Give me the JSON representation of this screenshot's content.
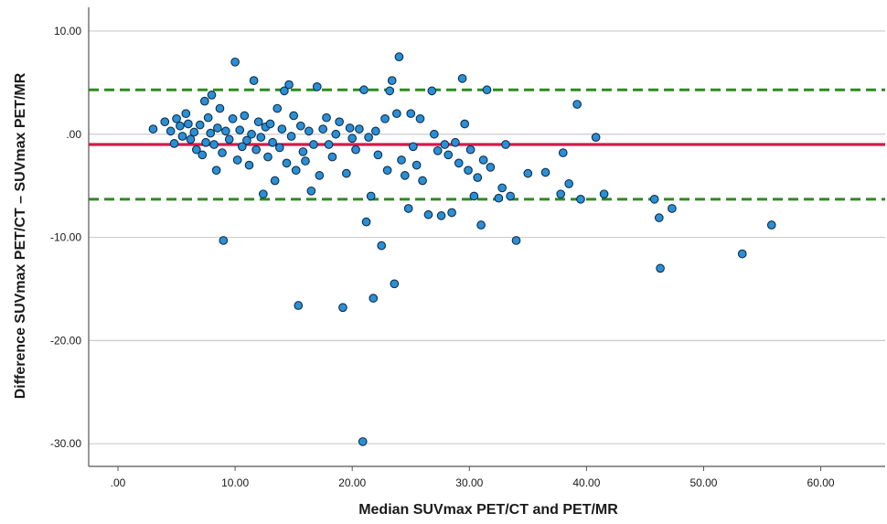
{
  "chart_data": {
    "type": "scatter",
    "title": "",
    "xlabel": "Median SUVmax PET/CT and PET/MR",
    "ylabel": "Difference SUVmax PET/CT – SUVmax PET/MR",
    "xlim": [
      -2.5,
      65.5
    ],
    "ylim": [
      -32.2,
      12.3
    ],
    "x_ticks": [
      0,
      10,
      20,
      30,
      40,
      50,
      60
    ],
    "x_tick_labels": [
      ".00",
      "10.00",
      "20.00",
      "30.00",
      "40.00",
      "50.00",
      "60.00"
    ],
    "y_ticks": [
      10,
      0,
      -10,
      -20,
      -30
    ],
    "y_tick_labels": [
      "10.00",
      ".00",
      "-10.00",
      "-20.00",
      "-30.00"
    ],
    "grid": "horizontal",
    "reference_lines": {
      "mean": -1.0,
      "upper_limit": 4.3,
      "lower_limit": -6.3
    },
    "colors": {
      "point_fill": "#2b8fd6",
      "point_stroke": "#0c2f4a",
      "mean_line": "#d7194b",
      "limit_lines": "#2e8b1f",
      "grid": "#cccccc",
      "axis": "#555555"
    },
    "points": [
      [
        3.0,
        0.5
      ],
      [
        4.0,
        1.2
      ],
      [
        4.5,
        0.3
      ],
      [
        4.8,
        -0.9
      ],
      [
        5.0,
        1.5
      ],
      [
        5.3,
        0.8
      ],
      [
        5.5,
        -0.2
      ],
      [
        5.8,
        2.0
      ],
      [
        6.0,
        1.0
      ],
      [
        6.2,
        -0.5
      ],
      [
        6.5,
        0.2
      ],
      [
        6.7,
        -1.5
      ],
      [
        7.0,
        0.9
      ],
      [
        7.2,
        -2.0
      ],
      [
        7.4,
        3.2
      ],
      [
        7.5,
        -0.8
      ],
      [
        7.7,
        1.6
      ],
      [
        7.9,
        0.1
      ],
      [
        8.0,
        3.8
      ],
      [
        8.2,
        -1.0
      ],
      [
        8.4,
        -3.5
      ],
      [
        8.5,
        0.6
      ],
      [
        8.7,
        2.5
      ],
      [
        8.9,
        -1.8
      ],
      [
        9.0,
        -10.3
      ],
      [
        9.2,
        0.3
      ],
      [
        9.5,
        -0.5
      ],
      [
        9.8,
        1.5
      ],
      [
        10.0,
        7.0
      ],
      [
        10.2,
        -2.5
      ],
      [
        10.4,
        0.4
      ],
      [
        10.6,
        -1.2
      ],
      [
        10.8,
        1.8
      ],
      [
        11.0,
        -0.6
      ],
      [
        11.2,
        -3.0
      ],
      [
        11.4,
        0.0
      ],
      [
        11.6,
        5.2
      ],
      [
        11.8,
        -1.5
      ],
      [
        12.0,
        1.2
      ],
      [
        12.2,
        -0.3
      ],
      [
        12.4,
        -5.8
      ],
      [
        12.6,
        0.7
      ],
      [
        12.8,
        -2.2
      ],
      [
        13.0,
        1.0
      ],
      [
        13.2,
        -0.8
      ],
      [
        13.4,
        -4.5
      ],
      [
        13.6,
        2.5
      ],
      [
        13.8,
        -1.3
      ],
      [
        14.0,
        0.5
      ],
      [
        14.2,
        4.2
      ],
      [
        14.4,
        -2.8
      ],
      [
        14.6,
        4.8
      ],
      [
        14.8,
        -0.2
      ],
      [
        15.0,
        1.8
      ],
      [
        15.2,
        -3.5
      ],
      [
        15.4,
        -16.6
      ],
      [
        15.6,
        0.8
      ],
      [
        15.8,
        -1.7
      ],
      [
        16.0,
        -2.6
      ],
      [
        16.3,
        0.3
      ],
      [
        16.5,
        -5.5
      ],
      [
        16.7,
        -1.0
      ],
      [
        17.0,
        4.6
      ],
      [
        17.2,
        -4.0
      ],
      [
        17.5,
        0.5
      ],
      [
        17.8,
        1.6
      ],
      [
        18.0,
        -1.0
      ],
      [
        18.3,
        -2.2
      ],
      [
        18.6,
        0.0
      ],
      [
        18.9,
        1.2
      ],
      [
        19.2,
        -16.8
      ],
      [
        19.5,
        -3.8
      ],
      [
        19.8,
        0.6
      ],
      [
        20.0,
        -0.4
      ],
      [
        20.3,
        -1.5
      ],
      [
        20.6,
        0.5
      ],
      [
        20.9,
        -29.8
      ],
      [
        21.0,
        4.3
      ],
      [
        21.2,
        -8.5
      ],
      [
        21.4,
        -0.3
      ],
      [
        21.6,
        -6.0
      ],
      [
        21.8,
        -15.9
      ],
      [
        22.0,
        0.3
      ],
      [
        22.2,
        -2.0
      ],
      [
        22.5,
        -10.8
      ],
      [
        22.8,
        1.5
      ],
      [
        23.0,
        -3.5
      ],
      [
        23.2,
        4.2
      ],
      [
        23.4,
        5.2
      ],
      [
        23.6,
        -14.5
      ],
      [
        23.8,
        2.0
      ],
      [
        24.0,
        7.5
      ],
      [
        24.2,
        -2.5
      ],
      [
        24.5,
        -4.0
      ],
      [
        24.8,
        -7.2
      ],
      [
        25.0,
        2.0
      ],
      [
        25.2,
        -1.2
      ],
      [
        25.5,
        -3.0
      ],
      [
        25.8,
        1.5
      ],
      [
        26.0,
        -4.5
      ],
      [
        26.5,
        -7.8
      ],
      [
        26.8,
        4.2
      ],
      [
        27.0,
        0.0
      ],
      [
        27.3,
        -1.6
      ],
      [
        27.6,
        -7.9
      ],
      [
        27.9,
        -1.0
      ],
      [
        28.2,
        -2.0
      ],
      [
        28.5,
        -7.6
      ],
      [
        28.8,
        -0.8
      ],
      [
        29.1,
        -2.8
      ],
      [
        29.4,
        5.4
      ],
      [
        29.6,
        1.0
      ],
      [
        29.9,
        -3.5
      ],
      [
        30.1,
        -1.5
      ],
      [
        30.4,
        -6.0
      ],
      [
        30.7,
        -4.2
      ],
      [
        31.0,
        -8.8
      ],
      [
        31.2,
        -2.5
      ],
      [
        31.5,
        4.3
      ],
      [
        31.8,
        -3.2
      ],
      [
        32.5,
        -6.2
      ],
      [
        32.8,
        -5.2
      ],
      [
        33.1,
        -1.0
      ],
      [
        33.5,
        -6.0
      ],
      [
        34.0,
        -10.3
      ],
      [
        35.0,
        -3.8
      ],
      [
        36.5,
        -3.7
      ],
      [
        37.8,
        -5.8
      ],
      [
        38.0,
        -1.8
      ],
      [
        38.5,
        -4.8
      ],
      [
        39.2,
        2.9
      ],
      [
        39.5,
        -6.3
      ],
      [
        40.8,
        -0.3
      ],
      [
        41.5,
        -5.8
      ],
      [
        45.8,
        -6.3
      ],
      [
        46.2,
        -8.1
      ],
      [
        46.3,
        -13.0
      ],
      [
        47.3,
        -7.2
      ],
      [
        53.3,
        -11.6
      ],
      [
        55.8,
        -8.8
      ]
    ]
  }
}
